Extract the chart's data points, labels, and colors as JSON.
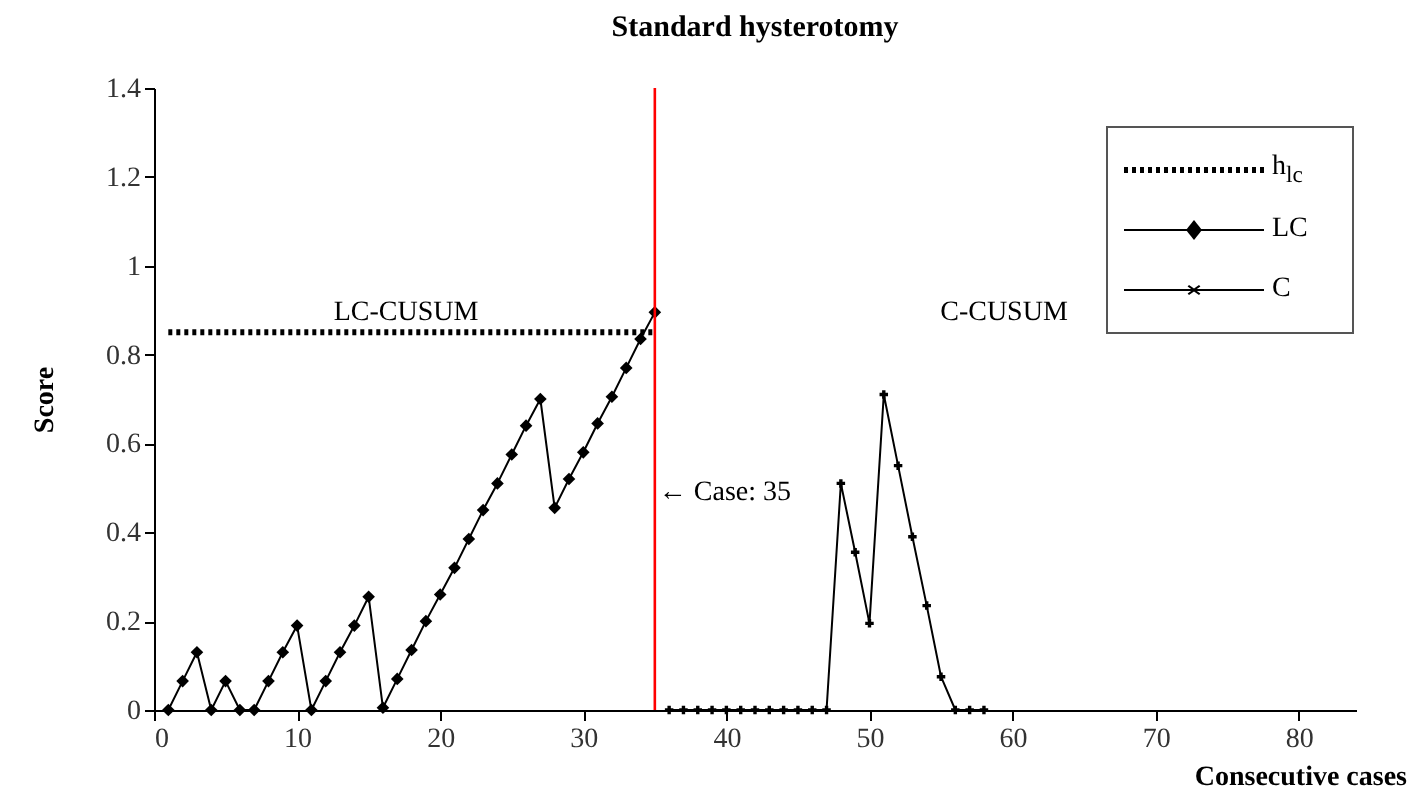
{
  "chart_data": {
    "type": "line",
    "title": "Standard hysterotomy",
    "xlabel": "Consecutive cases",
    "ylabel": "Score",
    "xlim": [
      0,
      84
    ],
    "xticks": [
      0,
      10,
      20,
      30,
      40,
      50,
      60,
      70,
      80
    ],
    "ylim": [
      0,
      1.4
    ],
    "yticks": [
      0,
      0.2,
      0.4,
      0.6,
      0.8,
      1,
      1.2,
      1.4
    ],
    "grid": false,
    "legend": "top right",
    "series": [
      {
        "name": "h$_{lc}$",
        "color": "#000000",
        "type": "line",
        "line_style": "dotted",
        "marker": "none",
        "x": [
          1,
          35
        ],
        "values": [
          0.85,
          0.85
        ]
      },
      {
        "name": "LC",
        "color": "#000000",
        "type": "line",
        "line_style": "solid",
        "marker": "diamond",
        "x": [
          1,
          2,
          3,
          4,
          5,
          6,
          7,
          8,
          9,
          10,
          11,
          12,
          13,
          14,
          15,
          16,
          17,
          18,
          19,
          20,
          21,
          22,
          23,
          24,
          25,
          26,
          27,
          28,
          29,
          30,
          31,
          32,
          33,
          34,
          35
        ],
        "values": [
          0,
          0.065,
          0.13,
          0,
          0.065,
          0,
          0,
          0.065,
          0.13,
          0.19,
          0,
          0.065,
          0.13,
          0.19,
          0.255,
          0.005,
          0.07,
          0.135,
          0.2,
          0.26,
          0.32,
          0.385,
          0.45,
          0.51,
          0.575,
          0.64,
          0.7,
          0.455,
          0.52,
          0.58,
          0.645,
          0.705,
          0.77,
          0.835,
          0.895
        ]
      },
      {
        "name": "C",
        "color": "#000000",
        "type": "line",
        "line_style": "solid",
        "marker": "cross",
        "x": [
          36,
          37,
          38,
          39,
          40,
          41,
          42,
          43,
          44,
          45,
          46,
          47,
          48,
          49,
          50,
          51,
          52,
          53,
          54,
          55,
          56,
          57,
          58
        ],
        "values": [
          0,
          0,
          0,
          0,
          0,
          0,
          0,
          0,
          0,
          0,
          0,
          0,
          0.51,
          0.355,
          0.195,
          0.71,
          0.55,
          0.39,
          0.235,
          0.075,
          0,
          0,
          0
        ]
      }
    ],
    "ref_lines": [
      {
        "axis": "x",
        "value": 35,
        "label": "← Case: 35",
        "color": "#ff0000"
      }
    ],
    "annotations": [
      "LC-CUSUM",
      "C-CUSUM"
    ]
  }
}
